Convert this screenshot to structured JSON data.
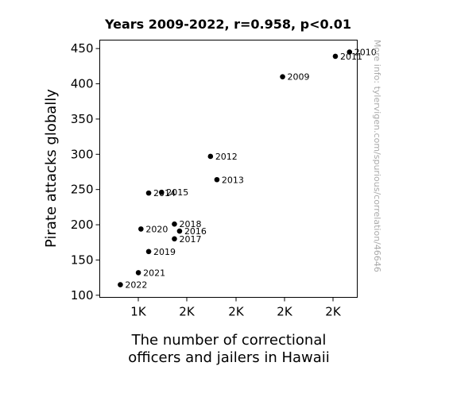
{
  "chart_data": {
    "type": "scatter",
    "title": "Years 2009-2022, r=0.958, p<0.01",
    "xlabel_lines": [
      "The number of correctional",
      "officers and jailers in Hawaii"
    ],
    "ylabel": "Pirate attacks globally",
    "side_note": "More info: tylervigen.com/spurious/correlation/46646",
    "x_tick_labels": [
      "1K",
      "2K",
      "2K",
      "2K",
      "2K"
    ],
    "y_ticks": [
      100,
      150,
      200,
      250,
      300,
      350,
      400,
      450
    ],
    "grid": false,
    "colors": {
      "point": "#000000",
      "side_note": "#aaaaaa"
    },
    "points": [
      {
        "label": "2009",
        "x": 1810,
        "y": 410
      },
      {
        "label": "2010",
        "x": 2070,
        "y": 445
      },
      {
        "label": "2011",
        "x": 2015,
        "y": 439
      },
      {
        "label": "2012",
        "x": 1530,
        "y": 297
      },
      {
        "label": "2013",
        "x": 1555,
        "y": 264
      },
      {
        "label": "2014",
        "x": 1290,
        "y": 245
      },
      {
        "label": "2015",
        "x": 1340,
        "y": 246
      },
      {
        "label": "2016",
        "x": 1410,
        "y": 191
      },
      {
        "label": "2017",
        "x": 1390,
        "y": 180
      },
      {
        "label": "2018",
        "x": 1390,
        "y": 201
      },
      {
        "label": "2019",
        "x": 1290,
        "y": 162
      },
      {
        "label": "2020",
        "x": 1260,
        "y": 194
      },
      {
        "label": "2021",
        "x": 1250,
        "y": 132
      },
      {
        "label": "2022",
        "x": 1180,
        "y": 115
      }
    ]
  }
}
